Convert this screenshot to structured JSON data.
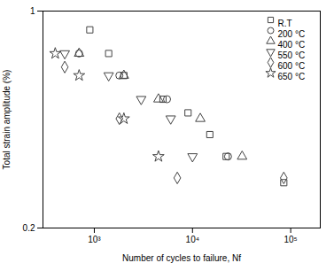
{
  "chart_data": {
    "type": "scatter",
    "xlabel": "Number of cycles to failure, Nf",
    "ylabel": "Total strain amplitude (%)",
    "log": true,
    "grid": false,
    "legend": "upper right",
    "xlim": [
      300,
      200000
    ],
    "ylim": [
      0.2,
      1
    ],
    "xticks": [
      {
        "value": 1000,
        "label": "10³"
      },
      {
        "value": 10000,
        "label": "10⁴"
      },
      {
        "value": 100000,
        "label": "10⁵"
      }
    ],
    "yticks": [
      0.2,
      1
    ],
    "series": [
      {
        "name": "R.T",
        "color": "#444444",
        "marker": "square",
        "x": [
          900,
          1400,
          2000,
          5000,
          9000,
          15000,
          22000,
          85000
        ],
        "values": [
          0.87,
          0.73,
          0.62,
          0.52,
          0.47,
          0.4,
          0.34,
          0.28
        ]
      },
      {
        "name": "200 °C",
        "color": "#444444",
        "marker": "circle",
        "x": [
          700,
          1800,
          5500,
          23000
        ],
        "values": [
          0.73,
          0.62,
          0.52,
          0.34
        ]
      },
      {
        "name": "400 °C",
        "color": "#444444",
        "marker": "triangle-up",
        "x": [
          700,
          2000,
          4500,
          12000,
          32000
        ],
        "values": [
          0.73,
          0.62,
          0.52,
          0.45,
          0.34
        ]
      },
      {
        "name": "550 °C",
        "color": "#444444",
        "marker": "triangle-down",
        "x": [
          500,
          1400,
          3000,
          6000,
          10000
        ],
        "values": [
          0.73,
          0.62,
          0.52,
          0.45,
          0.34
        ]
      },
      {
        "name": "600 °C",
        "color": "#444444",
        "marker": "diamond",
        "x": [
          500,
          1800,
          7000,
          85000
        ],
        "values": [
          0.66,
          0.45,
          0.29,
          0.29
        ]
      },
      {
        "name": "650 °C",
        "color": "#444444",
        "marker": "star",
        "x": [
          400,
          700,
          2000,
          4500
        ],
        "values": [
          0.73,
          0.62,
          0.45,
          0.34
        ]
      }
    ]
  }
}
